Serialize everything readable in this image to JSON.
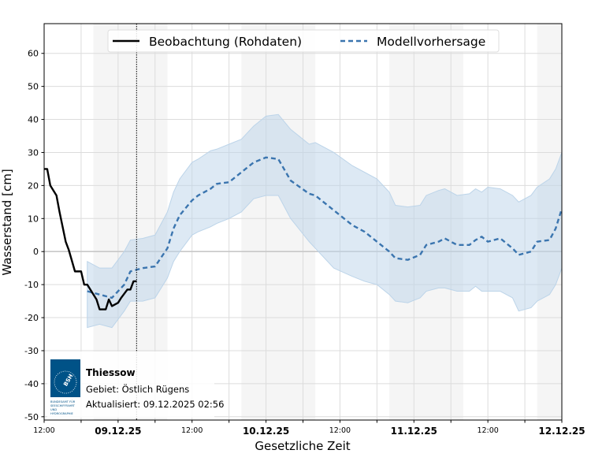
{
  "chart_data": {
    "type": "line",
    "title": "",
    "xlabel": "Gesetzliche Zeit",
    "ylabel": "Wasserstand [cm]",
    "xlim": [
      "2025-12-08 12:00",
      "2025-12-12 00:00"
    ],
    "ylim": [
      -51,
      69
    ],
    "grid": true,
    "legend_placement": "top-center",
    "y_ticks": [
      -50,
      -40,
      -30,
      -20,
      -10,
      0,
      10,
      20,
      30,
      40,
      50,
      60
    ],
    "x_ticks": [
      {
        "t": "2025-12-08 12:00",
        "label": "12:00",
        "bold": false
      },
      {
        "t": "2025-12-09 00:00",
        "label": "09.12.25",
        "bold": true
      },
      {
        "t": "2025-12-09 12:00",
        "label": "12:00",
        "bold": false
      },
      {
        "t": "2025-12-10 00:00",
        "label": "10.12.25",
        "bold": true
      },
      {
        "t": "2025-12-10 12:00",
        "label": "12:00",
        "bold": false
      },
      {
        "t": "2025-12-11 00:00",
        "label": "11.12.25",
        "bold": true
      },
      {
        "t": "2025-12-11 12:00",
        "label": "12:00",
        "bold": false
      },
      {
        "t": "2025-12-12 00:00",
        "label": "12.12.25",
        "bold": true
      }
    ],
    "shaded_periods": [
      [
        "2025-12-08 20:00",
        "2025-12-09 08:00"
      ],
      [
        "2025-12-09 20:00",
        "2025-12-10 08:00"
      ],
      [
        "2025-12-10 20:00",
        "2025-12-11 08:00"
      ],
      [
        "2025-12-11 20:00",
        "2025-12-12 00:00"
      ]
    ],
    "update_marker": "2025-12-09 03:00",
    "colors": {
      "observation": "#000000",
      "forecast": "#3b75af",
      "band": "#bcd4e9",
      "shade": "#f5f5f5",
      "logo": "#005287"
    },
    "series": [
      {
        "name": "Beobachtung (Rohdaten)",
        "style": "solid",
        "points": [
          [
            "2025-12-08 12:00",
            25
          ],
          [
            "2025-12-08 12:30",
            25
          ],
          [
            "2025-12-08 13:00",
            20
          ],
          [
            "2025-12-08 14:00",
            17
          ],
          [
            "2025-12-08 14:30",
            12
          ],
          [
            "2025-12-08 15:30",
            3
          ],
          [
            "2025-12-08 16:00",
            0.5
          ],
          [
            "2025-12-08 17:00",
            -6
          ],
          [
            "2025-12-08 18:00",
            -6
          ],
          [
            "2025-12-08 18:30",
            -10
          ],
          [
            "2025-12-08 19:00",
            -10
          ],
          [
            "2025-12-08 20:00",
            -13
          ],
          [
            "2025-12-08 20:30",
            -14.5
          ],
          [
            "2025-12-08 21:00",
            -17.5
          ],
          [
            "2025-12-08 22:00",
            -17.5
          ],
          [
            "2025-12-08 22:30",
            -14.5
          ],
          [
            "2025-12-08 23:00",
            -16.5
          ],
          [
            "2025-12-09 00:00",
            -15.5
          ],
          [
            "2025-12-09 00:30",
            -14
          ],
          [
            "2025-12-09 01:30",
            -11.5
          ],
          [
            "2025-12-09 02:00",
            -11.5
          ],
          [
            "2025-12-09 02:30",
            -9
          ],
          [
            "2025-12-09 03:00",
            -9
          ]
        ]
      },
      {
        "name": "Modellvorhersage",
        "style": "dashed",
        "points": [
          [
            "2025-12-08 19:00",
            -12,
            -23,
            -3
          ],
          [
            "2025-12-08 21:00",
            -13,
            -22,
            -5
          ],
          [
            "2025-12-08 23:00",
            -14,
            -23,
            -5
          ],
          [
            "2025-12-09 01:00",
            -10,
            -18,
            0
          ],
          [
            "2025-12-09 02:00",
            -6,
            -15,
            3.5
          ],
          [
            "2025-12-09 04:00",
            -5,
            -15,
            4
          ],
          [
            "2025-12-09 06:00",
            -4.5,
            -14,
            5
          ],
          [
            "2025-12-09 08:00",
            1,
            -8,
            12
          ],
          [
            "2025-12-09 09:00",
            7,
            -3,
            18
          ],
          [
            "2025-12-09 10:00",
            11,
            0,
            22
          ],
          [
            "2025-12-09 12:00",
            15.5,
            5,
            27
          ],
          [
            "2025-12-09 13:00",
            17,
            6,
            28
          ],
          [
            "2025-12-09 15:00",
            19,
            7.5,
            30.5
          ],
          [
            "2025-12-09 16:00",
            20.5,
            8.5,
            31
          ],
          [
            "2025-12-09 18:00",
            21,
            10,
            32.5
          ],
          [
            "2025-12-09 20:00",
            24,
            12,
            34
          ],
          [
            "2025-12-09 22:00",
            27,
            16,
            38
          ],
          [
            "2025-12-10 00:00",
            28.5,
            17,
            41
          ],
          [
            "2025-12-10 02:00",
            28,
            17,
            41.5
          ],
          [
            "2025-12-10 04:00",
            21.5,
            10,
            37
          ],
          [
            "2025-12-10 07:00",
            17.5,
            3,
            32.5
          ],
          [
            "2025-12-10 08:00",
            17,
            1,
            33
          ],
          [
            "2025-12-10 11:00",
            12.5,
            -5,
            30
          ],
          [
            "2025-12-10 14:00",
            8,
            -7.5,
            26
          ],
          [
            "2025-12-10 16:00",
            6,
            -9,
            24
          ],
          [
            "2025-12-10 18:00",
            3,
            -10,
            22
          ],
          [
            "2025-12-10 20:00",
            0,
            -13,
            18
          ],
          [
            "2025-12-10 21:00",
            -2,
            -15,
            14
          ],
          [
            "2025-12-10 23:00",
            -2.5,
            -15.5,
            13.5
          ],
          [
            "2025-12-11 01:00",
            -1,
            -14,
            14
          ],
          [
            "2025-12-11 02:00",
            2,
            -12,
            17
          ],
          [
            "2025-12-11 04:00",
            3,
            -11,
            18.5
          ],
          [
            "2025-12-11 05:00",
            4,
            -11,
            19
          ],
          [
            "2025-12-11 07:00",
            2,
            -12,
            17
          ],
          [
            "2025-12-11 09:00",
            2,
            -12,
            17.5
          ],
          [
            "2025-12-11 10:00",
            3.5,
            -10.5,
            19
          ],
          [
            "2025-12-11 11:00",
            4.5,
            -12,
            18
          ],
          [
            "2025-12-11 12:00",
            3,
            -12,
            19.5
          ],
          [
            "2025-12-11 14:00",
            4,
            -12,
            19
          ],
          [
            "2025-12-11 16:00",
            1,
            -14,
            17
          ],
          [
            "2025-12-11 17:00",
            -1,
            -18,
            15
          ],
          [
            "2025-12-11 19:00",
            0,
            -17,
            17
          ],
          [
            "2025-12-11 20:00",
            3,
            -15,
            19.5
          ],
          [
            "2025-12-11 22:00",
            3.5,
            -13,
            22
          ],
          [
            "2025-12-11 23:00",
            7,
            -10,
            25
          ],
          [
            "2025-12-12 00:00",
            13,
            -5,
            30
          ]
        ]
      }
    ]
  },
  "info": {
    "station": "Thiessow",
    "area": "Gebiet: Östlich Rügens",
    "updated": "Aktualisiert: 09.12.2025 02:56",
    "logo_text": "BSH",
    "logo_caption": "BUNDESAMT FÜR SEESCHIFFFAHRT UND HYDROGRAPHIE"
  }
}
